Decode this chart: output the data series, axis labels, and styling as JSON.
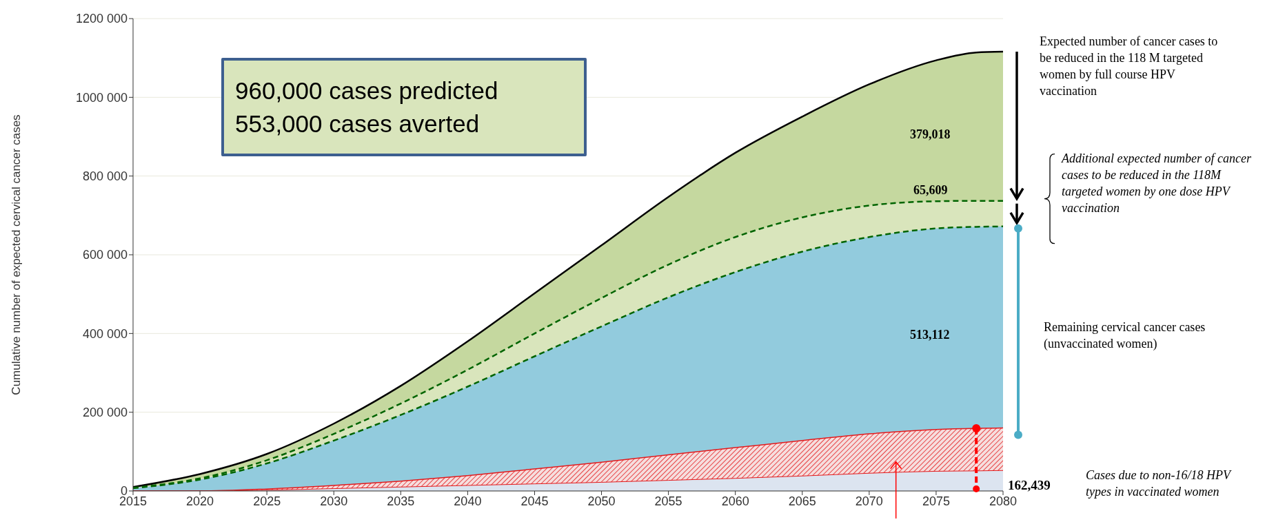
{
  "chart_data": {
    "type": "area",
    "ylabel": "Cumulative number of expected cervical cancer cases",
    "x": [
      2015,
      2020,
      2025,
      2030,
      2035,
      2040,
      2045,
      2050,
      2055,
      2060,
      2065,
      2070,
      2075,
      2078,
      2080
    ],
    "series": [
      {
        "color": "#c5d89f",
        "values": [
          10000,
          43000,
          94000,
          171000,
          267000,
          380000,
          502000,
          624000,
          747000,
          859000,
          951000,
          1033000,
          1094000,
          1114000,
          1116000
        ]
      },
      {
        "color": "#d9e5bc",
        "line_style": "dashed",
        "values": [
          8000,
          32000,
          78000,
          145000,
          222000,
          308000,
          400000,
          490000,
          575000,
          645000,
          695000,
          725000,
          736000,
          737000,
          737000
        ]
      },
      {
        "color": "#92cbdd",
        "values": [
          7000,
          29000,
          70000,
          128000,
          193000,
          265000,
          342000,
          418000,
          492000,
          556000,
          608000,
          645000,
          667000,
          671000,
          672000
        ]
      },
      {
        "color": "#e31a1c",
        "values": [
          0,
          0,
          5000,
          14000,
          25000,
          39000,
          56000,
          73000,
          92000,
          110000,
          128000,
          145000,
          156000,
          159000,
          160000
        ]
      },
      {
        "color": "#dce4f0",
        "values": [
          0,
          0,
          2000,
          6000,
          10000,
          14000,
          18000,
          22000,
          27000,
          32000,
          38000,
          45000,
          50000,
          51000,
          52000
        ]
      },
      {
        "type": "line",
        "color": "#006400",
        "line_style": "dashed",
        "values": [
          7000,
          29000,
          70000,
          128000,
          193000,
          265000,
          342000,
          418000,
          492000,
          556000,
          608000,
          645000,
          667000,
          671000,
          672000
        ]
      }
    ],
    "xlim": [
      2015,
      2080
    ],
    "xticks": [
      2015,
      2020,
      2025,
      2030,
      2035,
      2040,
      2045,
      2050,
      2055,
      2060,
      2065,
      2070,
      2075,
      2080
    ],
    "ylim": [
      0,
      1200000
    ],
    "yticks": [
      0,
      {
        "value": 200000,
        "label": "200 000"
      },
      {
        "value": 400000,
        "label": "400 000"
      },
      {
        "value": 600000,
        "label": "600 000"
      },
      {
        "value": 800000,
        "label": "800 000"
      },
      {
        "value": 1000000,
        "label": "1000 000"
      },
      {
        "value": 1200000,
        "label": "1200 000"
      }
    ],
    "grid": "y",
    "annotations": [
      "960,000 cases predicted\n553,000 cases averted",
      "Expected number of cancer cases to be reduced in the 118 M targeted women  by full course HPV vaccination",
      "Additional expected number of cancer cases to be reduced in the 118M targeted women by one dose HPV vaccination",
      "Remaining cervical cancer cases (unvaccinated women)",
      "Cases due to non-16/18 HPV types in vaccinated women",
      "162,439",
      "379,018",
      "65,609",
      "513,112"
    ]
  }
}
